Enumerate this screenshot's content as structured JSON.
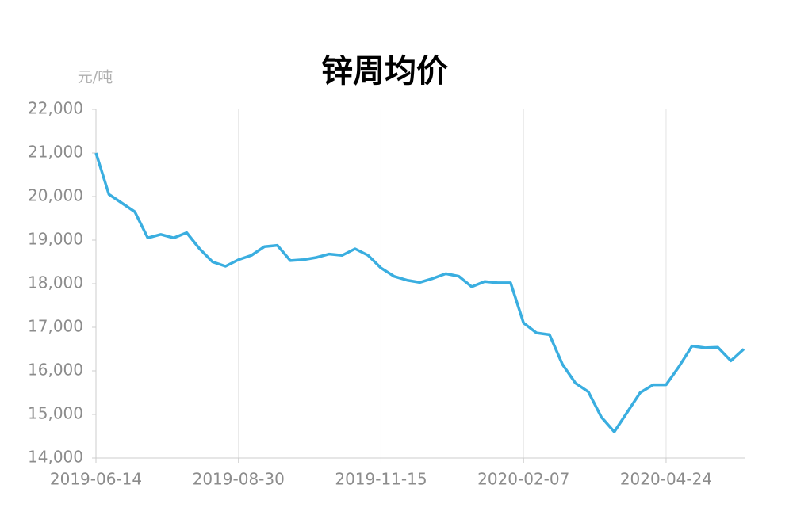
{
  "chart_data": {
    "type": "line",
    "title": "锌周均价",
    "y_label": "元/吨",
    "categories": [
      "2019-06-14",
      null,
      null,
      null,
      null,
      null,
      null,
      null,
      null,
      null,
      null,
      "2019-08-30",
      null,
      null,
      null,
      null,
      null,
      null,
      null,
      null,
      null,
      null,
      "2019-11-15",
      null,
      null,
      null,
      null,
      null,
      null,
      null,
      null,
      null,
      null,
      "2020-02-07",
      null,
      null,
      null,
      null,
      null,
      null,
      null,
      null,
      null,
      null,
      "2020-04-24",
      null,
      null,
      null,
      null,
      null,
      null
    ],
    "series": [
      {
        "name": "锌周均价",
        "color": "#3aaee0",
        "values": [
          21000,
          20050,
          19850,
          19650,
          19050,
          19130,
          19050,
          19170,
          18800,
          18500,
          18400,
          18550,
          18650,
          18850,
          18880,
          18530,
          18550,
          18600,
          18680,
          18650,
          18800,
          18650,
          18360,
          18170,
          18080,
          18030,
          18120,
          18230,
          18170,
          17930,
          18050,
          18020,
          18020,
          17100,
          16870,
          16830,
          16150,
          15720,
          15520,
          14940,
          14600,
          15050,
          15500,
          15680,
          15680,
          16100,
          16570,
          16530,
          16540,
          16230,
          16500
        ]
      }
    ],
    "ylim": [
      14000,
      22000
    ],
    "yticks": [
      {
        "value": 14000,
        "label": "14,000"
      },
      {
        "value": 15000,
        "label": "15,000"
      },
      {
        "value": 16000,
        "label": "16,000"
      },
      {
        "value": 17000,
        "label": "17,000"
      },
      {
        "value": 18000,
        "label": "18,000"
      },
      {
        "value": 19000,
        "label": "19,000"
      },
      {
        "value": 20000,
        "label": "20,000"
      },
      {
        "value": 21000,
        "label": "21,000"
      },
      {
        "value": 22000,
        "label": "22,000"
      }
    ],
    "grid": true
  }
}
